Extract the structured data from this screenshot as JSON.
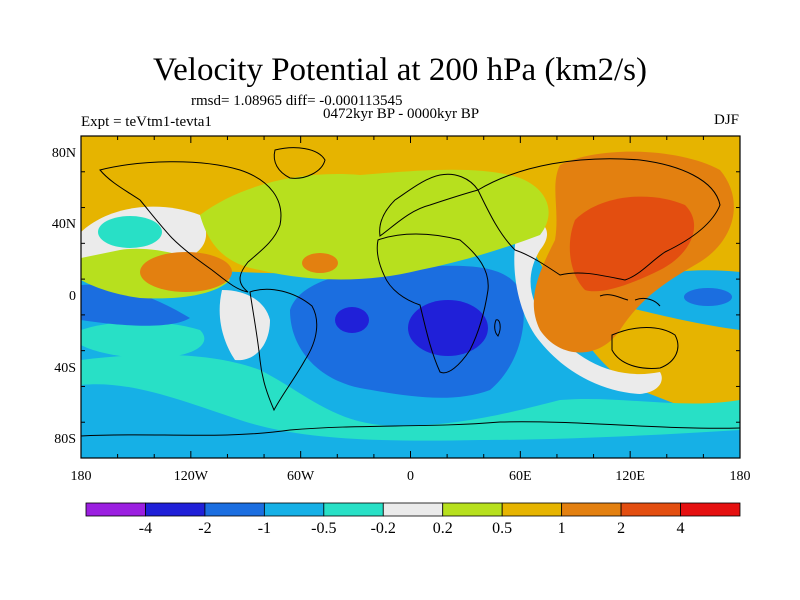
{
  "title": "Velocity Potential at 200 hPa (km2/s)",
  "stats": "rmsd= 1.08965 diff= -0.000113545",
  "experiment": "Expt = teVtm1-tevta1",
  "period": "0472kyr BP - 0000kyr BP",
  "season": "DJF",
  "map": {
    "lon_range": [
      -180,
      180
    ],
    "lat_range": [
      -90,
      90
    ],
    "lat_ticks": [
      {
        "value": 80,
        "label": "80N"
      },
      {
        "value": 40,
        "label": "40N"
      },
      {
        "value": 0,
        "label": "0"
      },
      {
        "value": -40,
        "label": "40S"
      },
      {
        "value": -80,
        "label": "80S"
      }
    ],
    "lon_ticks": [
      {
        "value": -180,
        "label": "180"
      },
      {
        "value": -120,
        "label": "120W"
      },
      {
        "value": -60,
        "label": "60W"
      },
      {
        "value": 0,
        "label": "0"
      },
      {
        "value": 60,
        "label": "60E"
      },
      {
        "value": 120,
        "label": "120E"
      },
      {
        "value": 180,
        "label": "180"
      }
    ]
  },
  "colorbar": {
    "levels": [
      -4,
      -2,
      -1,
      -0.5,
      -0.2,
      0.2,
      0.5,
      1,
      2,
      4
    ],
    "labels": [
      "-4",
      "-2",
      "-1",
      "-0.5",
      "-0.2",
      "0.2",
      "0.5",
      "1",
      "2",
      "4"
    ],
    "colors": [
      "#9b1fe0",
      "#2020d8",
      "#1b6ee0",
      "#16b0e6",
      "#28e0c6",
      "#ebebeb",
      "#b7e01e",
      "#e6b400",
      "#e38010",
      "#e34e10",
      "#e51010"
    ]
  }
}
